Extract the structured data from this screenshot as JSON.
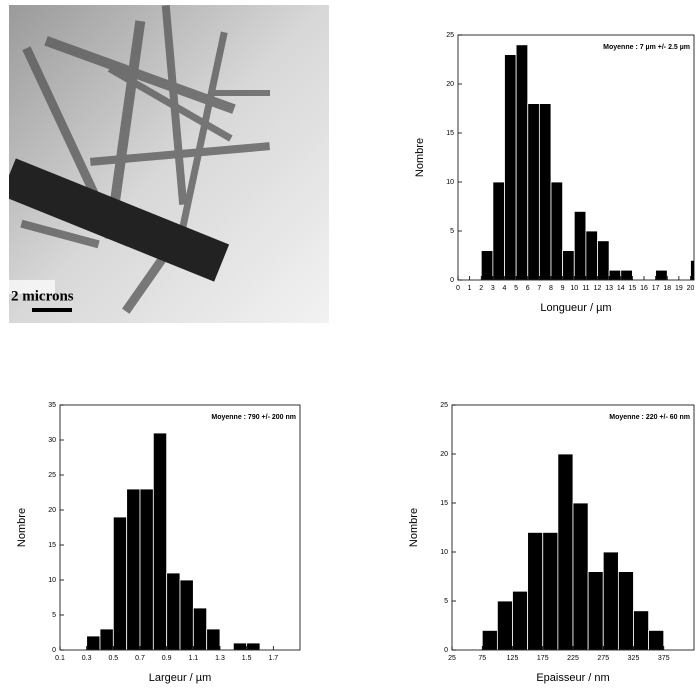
{
  "image": {
    "scale_label": "2 microns"
  },
  "chart_data": [
    {
      "type": "histogram",
      "annotation": "Moyenne : 7 µm +/- 2.5 µm",
      "xlabel": "Longueur / µm",
      "ylabel": "Nombre",
      "color": "#000000",
      "bins": [
        2,
        3,
        4,
        5,
        6,
        7,
        8,
        9,
        10,
        11,
        12,
        13,
        14,
        15,
        16,
        17,
        18,
        19,
        20,
        21
      ],
      "values": [
        3,
        10,
        23,
        24,
        18,
        18,
        10,
        3,
        7,
        5,
        4,
        1,
        1,
        0,
        0,
        1,
        0,
        0,
        2
      ],
      "xlim": [
        0,
        20.3
      ],
      "xticks": [
        0,
        1,
        2,
        3,
        4,
        5,
        6,
        7,
        8,
        9,
        10,
        11,
        12,
        13,
        14,
        15,
        16,
        17,
        18,
        19,
        20
      ],
      "ylim": [
        0,
        25
      ],
      "yticks": [
        0,
        5,
        10,
        15,
        20,
        25
      ]
    },
    {
      "type": "histogram",
      "annotation": "Moyenne : 790 +/- 200 nm",
      "xlabel": "Largeur / µm",
      "ylabel": "Nombre",
      "color": "#000000",
      "bins": [
        0.3,
        0.4,
        0.5,
        0.6,
        0.7,
        0.8,
        0.9,
        1.0,
        1.1,
        1.2,
        1.3,
        1.4,
        1.5,
        1.6
      ],
      "values": [
        2,
        3,
        19,
        23,
        23,
        31,
        11,
        10,
        6,
        3,
        0,
        1,
        1
      ],
      "xlim": [
        0.1,
        1.9
      ],
      "xticks": [
        0.1,
        0.3,
        0.5,
        0.7,
        0.9,
        1.1,
        1.3,
        1.5,
        1.7
      ],
      "ylim": [
        0,
        35
      ],
      "yticks": [
        0,
        5,
        10,
        15,
        20,
        25,
        30,
        35
      ]
    },
    {
      "type": "histogram",
      "annotation": "Moyenne : 220 +/- 60 nm",
      "xlabel": "Epaisseur / nm",
      "ylabel": "Nombre",
      "color": "#000000",
      "bins": [
        75,
        100,
        125,
        150,
        175,
        200,
        225,
        250,
        275,
        300,
        325,
        350,
        375
      ],
      "values": [
        2,
        5,
        6,
        12,
        12,
        20,
        15,
        8,
        10,
        8,
        4,
        2
      ],
      "xlim": [
        25,
        425
      ],
      "xticks": [
        25,
        75,
        125,
        175,
        225,
        275,
        325,
        375
      ],
      "ylim": [
        0,
        25
      ],
      "yticks": [
        0,
        5,
        10,
        15,
        20,
        25
      ]
    }
  ]
}
